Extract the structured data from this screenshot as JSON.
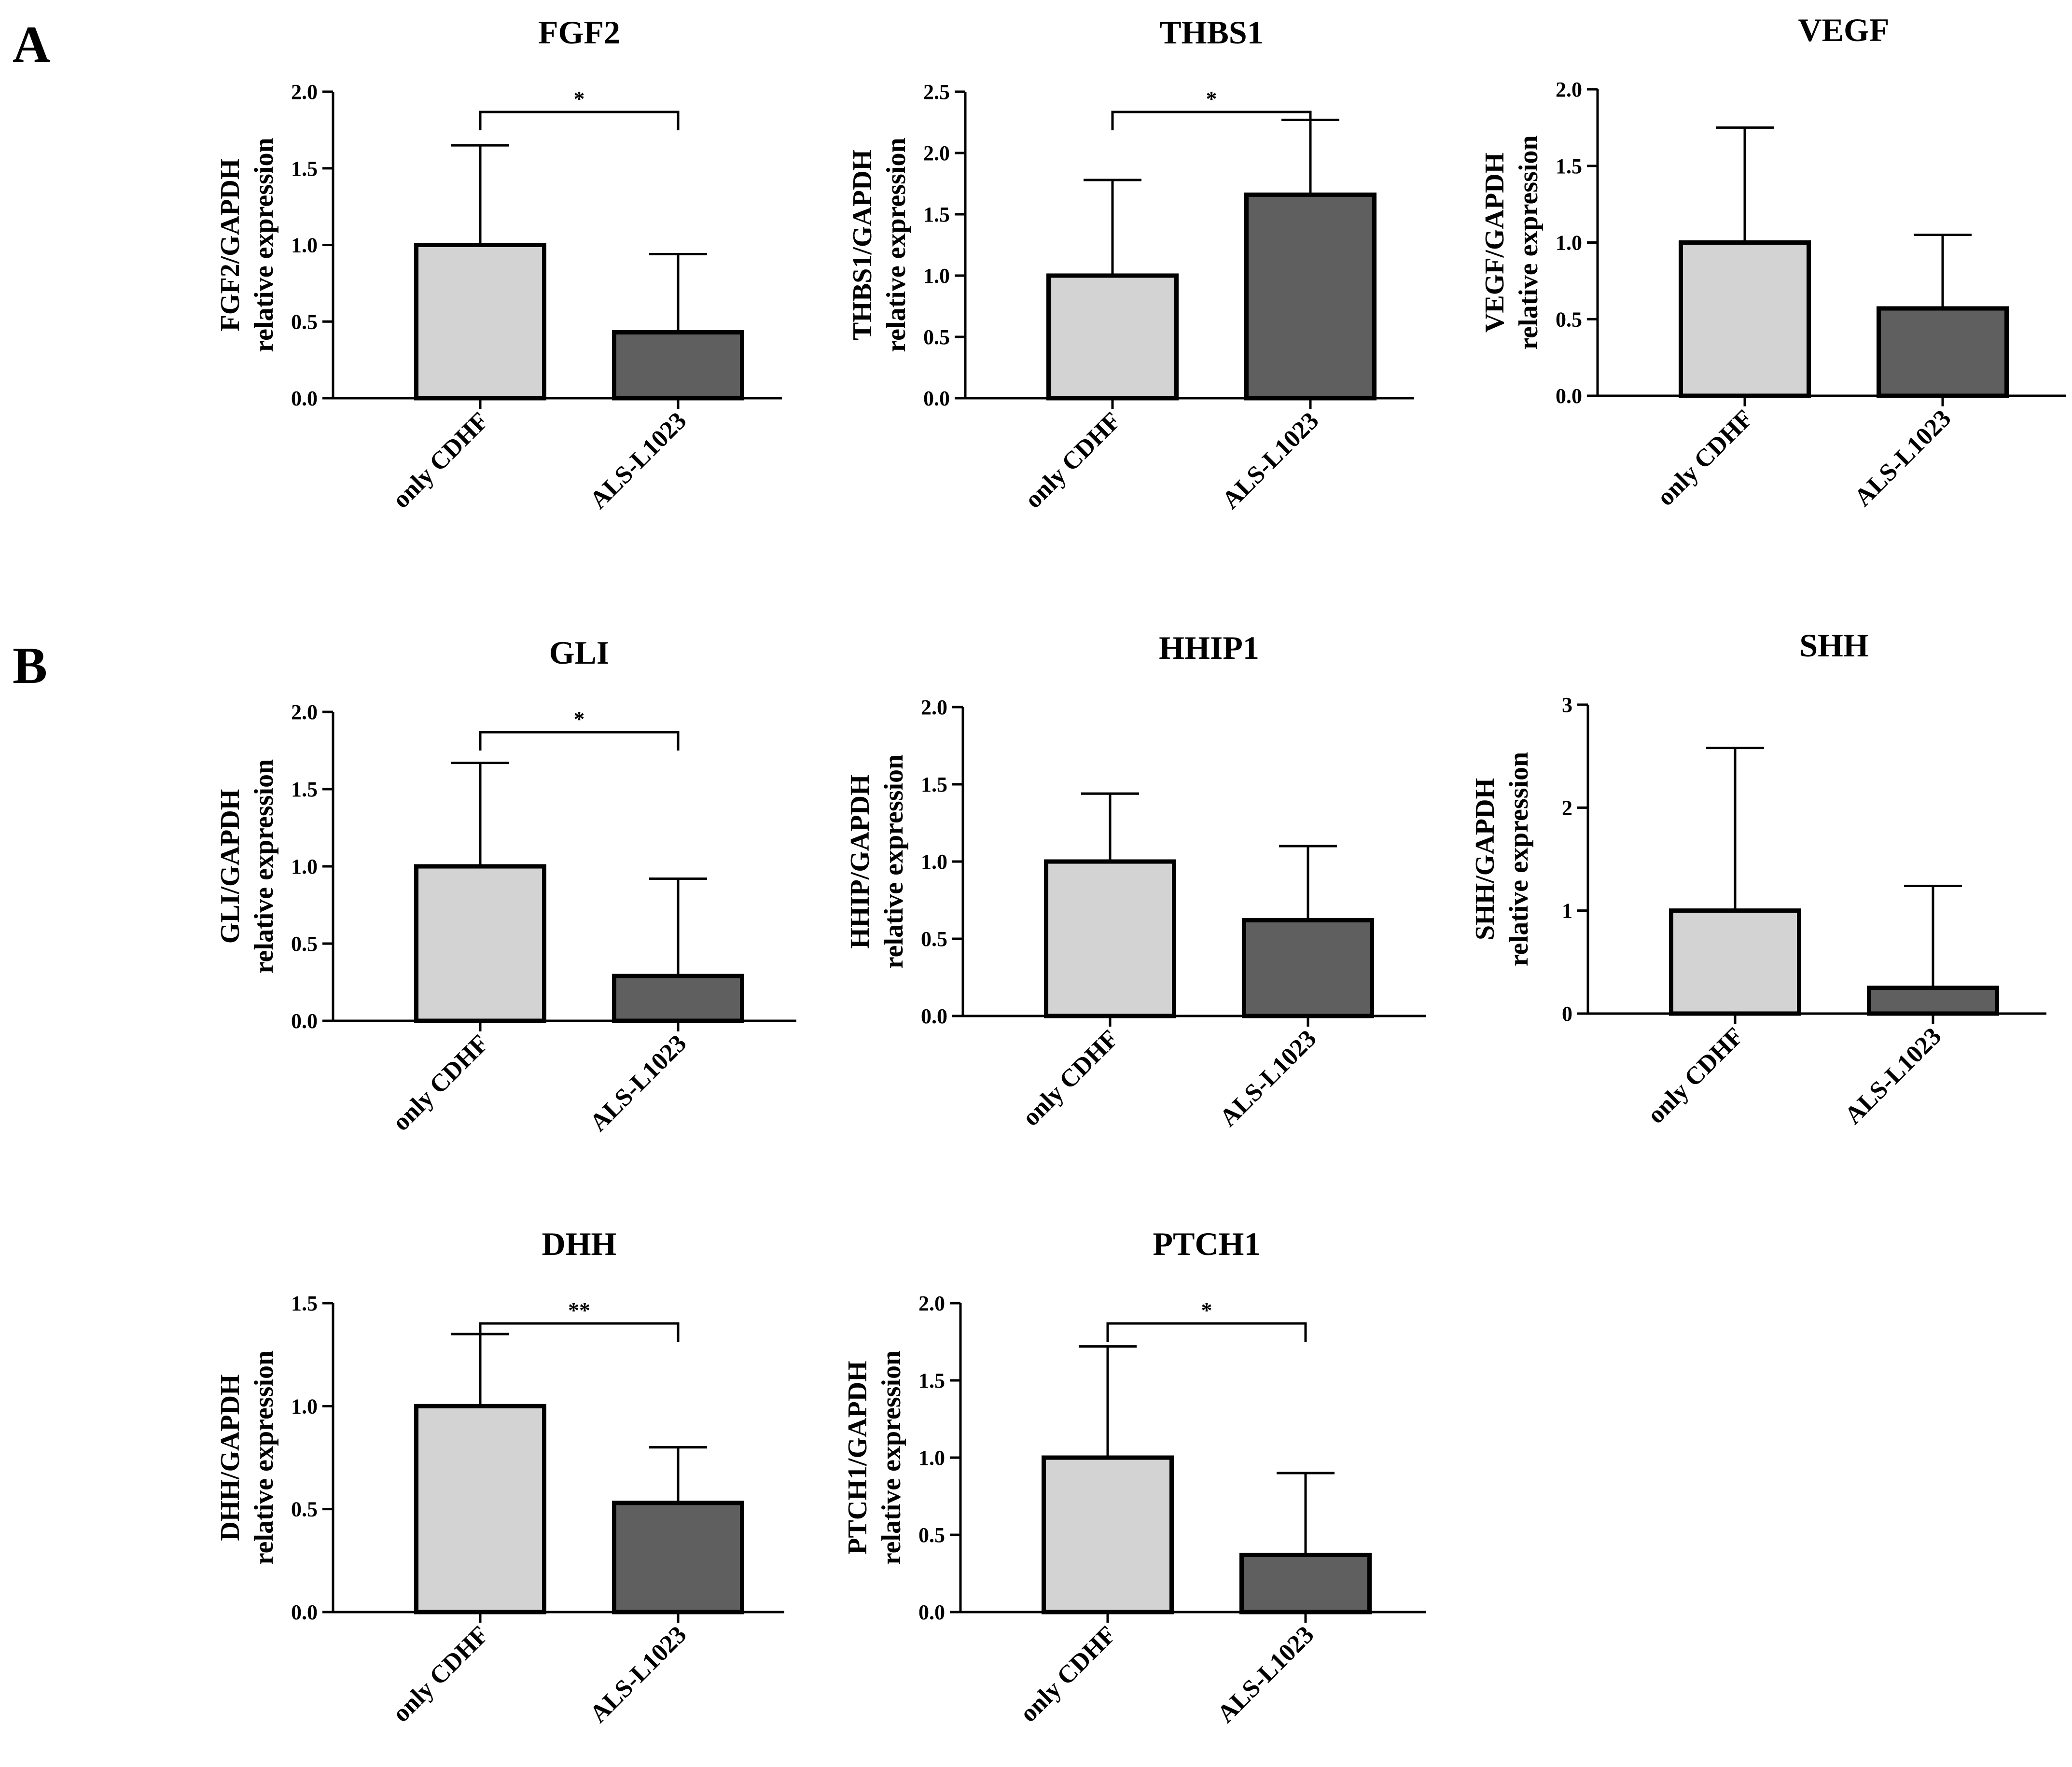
{
  "panel_labels": [
    "A",
    "B"
  ],
  "colors": {
    "control": "#d3d3d3",
    "treatment": "#5f5f5f"
  },
  "chart_data": [
    {
      "type": "bar",
      "panel": "A",
      "title": "FGF2",
      "ylabel_line1": "FGF2/GAPDH",
      "ylabel_line2": "relative expression",
      "categories": [
        "only CDHF",
        "ALS-L1023"
      ],
      "values": [
        1.0,
        0.43
      ],
      "error_upper": [
        1.65,
        0.94
      ],
      "ylim": [
        0,
        2.0
      ],
      "yticks": [
        "0.0",
        "0.5",
        "1.0",
        "1.5",
        "2.0"
      ],
      "significance": "*"
    },
    {
      "type": "bar",
      "panel": "A",
      "title": "THBS1",
      "ylabel_line1": "THBS1/GAPDH",
      "ylabel_line2": "relative expression",
      "categories": [
        "only CDHF",
        "ALS-L1023"
      ],
      "values": [
        1.0,
        1.66
      ],
      "error_upper": [
        1.78,
        2.27
      ],
      "ylim": [
        0,
        2.5
      ],
      "yticks": [
        "0.0",
        "0.5",
        "1.0",
        "1.5",
        "2.0",
        "2.5"
      ],
      "significance": "*"
    },
    {
      "type": "bar",
      "panel": "A",
      "title": "VEGF",
      "ylabel_line1": "VEGF/GAPDH",
      "ylabel_line2": "relative expression",
      "categories": [
        "only CDHF",
        "ALS-L1023"
      ],
      "values": [
        1.0,
        0.57
      ],
      "error_upper": [
        1.75,
        1.05
      ],
      "ylim": [
        0,
        2.0
      ],
      "yticks": [
        "0.0",
        "0.5",
        "1.0",
        "1.5",
        "2.0"
      ],
      "significance": ""
    },
    {
      "type": "bar",
      "panel": "B",
      "title": "GLI",
      "ylabel_line1": "GLI/GAPDH",
      "ylabel_line2": "relative expression",
      "categories": [
        "only CDHF",
        "ALS-L1023"
      ],
      "values": [
        1.0,
        0.29
      ],
      "error_upper": [
        1.67,
        0.92
      ],
      "ylim": [
        0,
        2.0
      ],
      "yticks": [
        "0.0",
        "0.5",
        "1.0",
        "1.5",
        "2.0"
      ],
      "significance": "*"
    },
    {
      "type": "bar",
      "panel": "B",
      "title": "HHIP1",
      "ylabel_line1": "HHIP/GAPDH",
      "ylabel_line2": "relative expression",
      "categories": [
        "only CDHF",
        "ALS-L1023"
      ],
      "values": [
        1.0,
        0.62
      ],
      "error_upper": [
        1.44,
        1.1
      ],
      "ylim": [
        0,
        2.0
      ],
      "yticks": [
        "0.0",
        "0.5",
        "1.0",
        "1.5",
        "2.0"
      ],
      "significance": ""
    },
    {
      "type": "bar",
      "panel": "B",
      "title": "SHH",
      "ylabel_line1": "SHH/GAPDH",
      "ylabel_line2": "relative expression",
      "categories": [
        "only CDHF",
        "ALS-L1023"
      ],
      "values": [
        1.0,
        0.25
      ],
      "error_upper": [
        2.58,
        1.24
      ],
      "ylim": [
        0,
        3
      ],
      "yticks": [
        "0",
        "1",
        "2",
        "3"
      ],
      "significance": ""
    },
    {
      "type": "bar",
      "panel": "B",
      "title": "DHH",
      "ylabel_line1": "DHH/GAPDH",
      "ylabel_line2": "relative expression",
      "categories": [
        "only CDHF",
        "ALS-L1023"
      ],
      "values": [
        1.0,
        0.53
      ],
      "error_upper": [
        1.35,
        0.8
      ],
      "ylim": [
        0,
        1.5
      ],
      "yticks": [
        "0.0",
        "0.5",
        "1.0",
        "1.5"
      ],
      "significance": "**"
    },
    {
      "type": "bar",
      "panel": "B",
      "title": "PTCH1",
      "ylabel_line1": "PTCH1/GAPDH",
      "ylabel_line2": "relative expression",
      "categories": [
        "only CDHF",
        "ALS-L1023"
      ],
      "values": [
        1.0,
        0.37
      ],
      "error_upper": [
        1.72,
        0.9
      ],
      "ylim": [
        0,
        2.0
      ],
      "yticks": [
        "0.0",
        "0.5",
        "1.0",
        "1.5",
        "2.0"
      ],
      "significance": "*"
    }
  ]
}
